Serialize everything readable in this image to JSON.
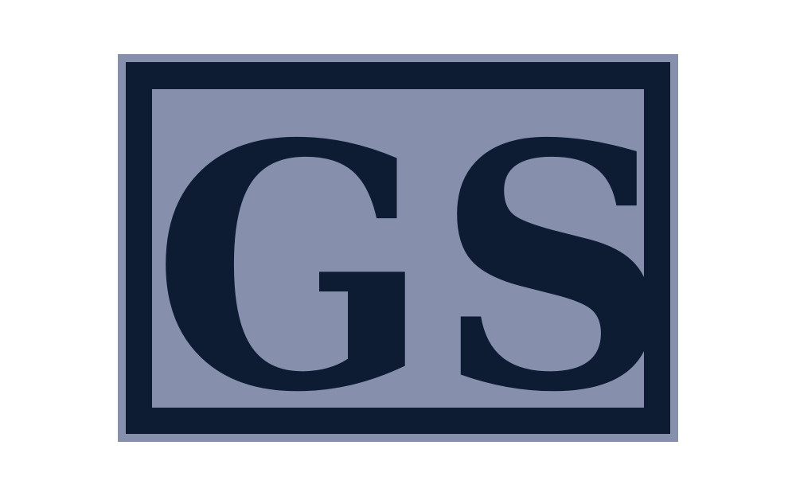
{
  "logo": {
    "monogram": "GS",
    "colors": {
      "background": "#ffffff",
      "light_blue": "#8690ad",
      "navy": "#0d1b33"
    }
  }
}
